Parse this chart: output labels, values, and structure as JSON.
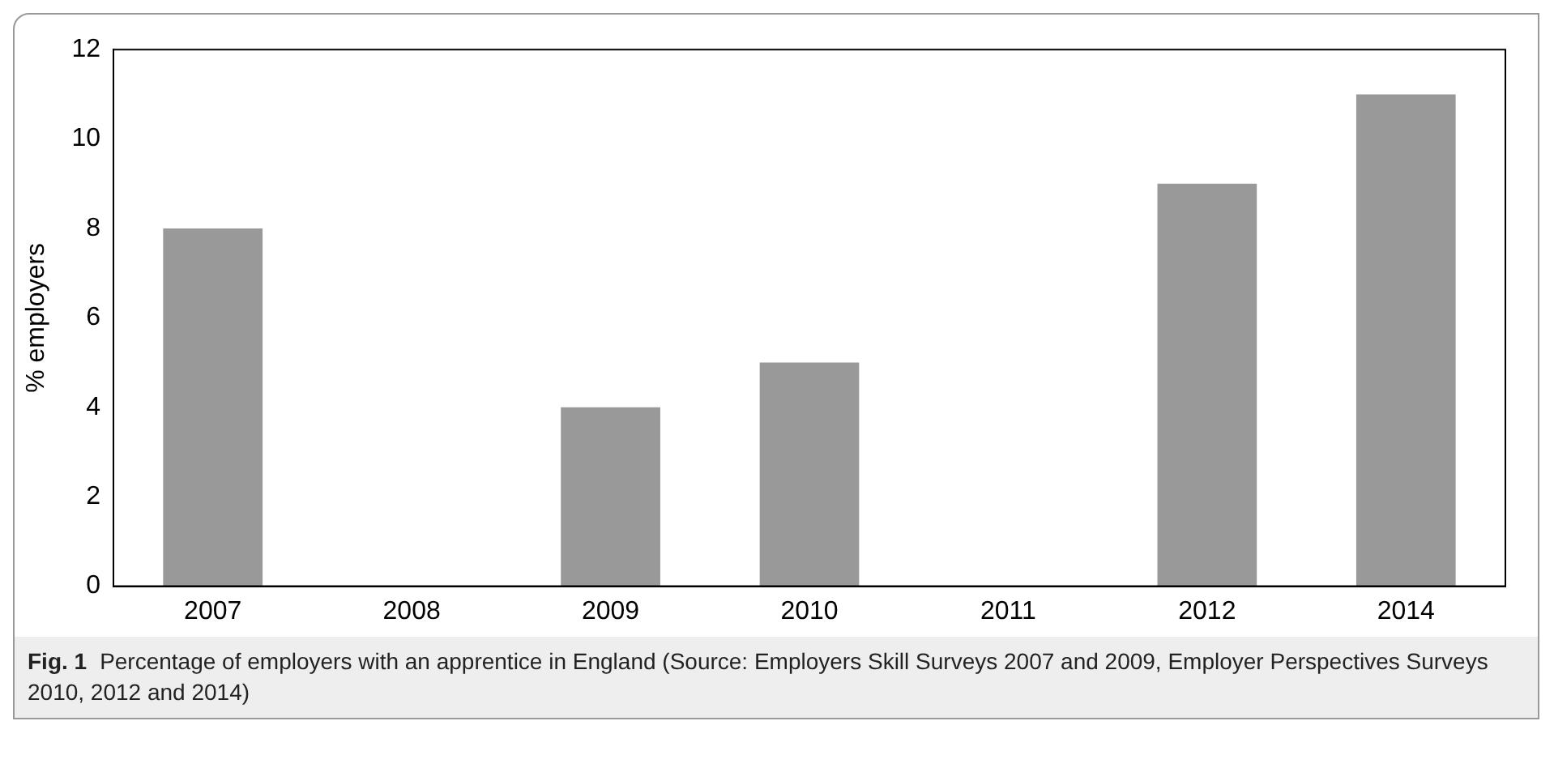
{
  "chart_data": {
    "type": "bar",
    "ylabel": "% employers",
    "categories": [
      "2007",
      "2008",
      "2009",
      "2010",
      "2011",
      "2012",
      "2014"
    ],
    "values": [
      8,
      null,
      4,
      5,
      null,
      9,
      11
    ],
    "color": "#999999",
    "ylim": [
      0,
      12
    ],
    "yticks": [
      0,
      2,
      4,
      6,
      8,
      10,
      12
    ],
    "grid": false,
    "legend": false,
    "annotations": [
      "Fig. 1",
      "Percentage of employers with an apprentice in England (Source: Employers Skill Surveys 2007 and 2009, Employer Perspectives Surveys 2010, 2012 and 2014)"
    ]
  }
}
